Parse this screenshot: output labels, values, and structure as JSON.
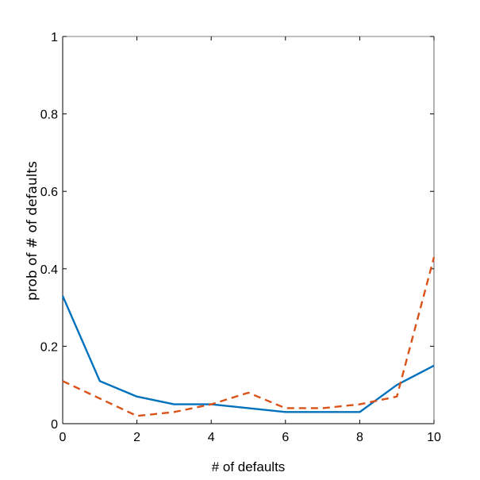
{
  "chart_data": {
    "type": "line",
    "title": "",
    "xlabel": "# of defaults",
    "ylabel": "prob of # of defaults",
    "xlim": [
      0,
      10
    ],
    "ylim": [
      0,
      1
    ],
    "x_ticks": [
      "0",
      "2",
      "4",
      "6",
      "8",
      "10"
    ],
    "y_ticks": [
      "0",
      "0.2",
      "0.4",
      "0.6",
      "0.8",
      "1"
    ],
    "grid": false,
    "legend": "none",
    "x": [
      0,
      1,
      2,
      3,
      4,
      5,
      6,
      7,
      8,
      9,
      10
    ],
    "series": [
      {
        "style": "solid",
        "color": "#0072BD",
        "values": [
          0.33,
          0.11,
          0.07,
          0.05,
          0.05,
          0.04,
          0.03,
          0.03,
          0.03,
          0.1,
          0.15
        ]
      },
      {
        "style": "dashed",
        "color": "#D95319",
        "values": [
          0.11,
          0.065,
          0.02,
          0.03,
          0.05,
          0.08,
          0.04,
          0.04,
          0.05,
          0.07,
          0.43
        ]
      }
    ]
  }
}
